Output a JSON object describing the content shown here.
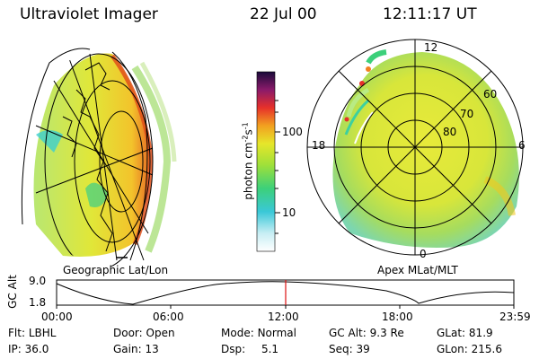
{
  "header": {
    "title": "Ultraviolet Imager",
    "date": "22 Jul 00",
    "time": "12:11:17 UT"
  },
  "left_map": {
    "caption": "Geographic Lat/Lon"
  },
  "right_map": {
    "caption": "Apex MLat/MLT",
    "mlt_labels": [
      "12",
      "18",
      "6",
      "0"
    ],
    "mlat_labels": [
      "60",
      "70",
      "80"
    ]
  },
  "colorbar": {
    "unit_label": "photon cm",
    "unit_sup1": "-2",
    "unit_s": "s",
    "unit_sup2": "-1",
    "tick_100": "100",
    "tick_10": "10"
  },
  "altitude_plot": {
    "ylabel": "GC Alt",
    "ytick_top": "9.0",
    "ytick_bottom": "1.8",
    "xticks": [
      "00:00",
      "06:00",
      "12:00",
      "18:00",
      "23:59"
    ]
  },
  "metadata": {
    "row1": [
      {
        "label": "Flt:",
        "value": "LBHL"
      },
      {
        "label": "Door:",
        "value": "Open"
      },
      {
        "label": "Mode:",
        "value": "Normal"
      },
      {
        "label": "GC Alt:",
        "value": "9.3 Re"
      },
      {
        "label": "GLat:",
        "value": "81.9"
      }
    ],
    "row2": [
      {
        "label": "IP:",
        "value": "36.0"
      },
      {
        "label": "Gain:",
        "value": "13"
      },
      {
        "label": "Dsp:",
        "value": "5.1"
      },
      {
        "label": "Seq:",
        "value": "39"
      },
      {
        "label": "GLon:",
        "value": "215.6"
      }
    ]
  },
  "colors": {
    "marker": "#d11",
    "aurora_low": "#ccf",
    "aurora_mid": "#dfe200",
    "aurora_high": "#f2a000"
  }
}
